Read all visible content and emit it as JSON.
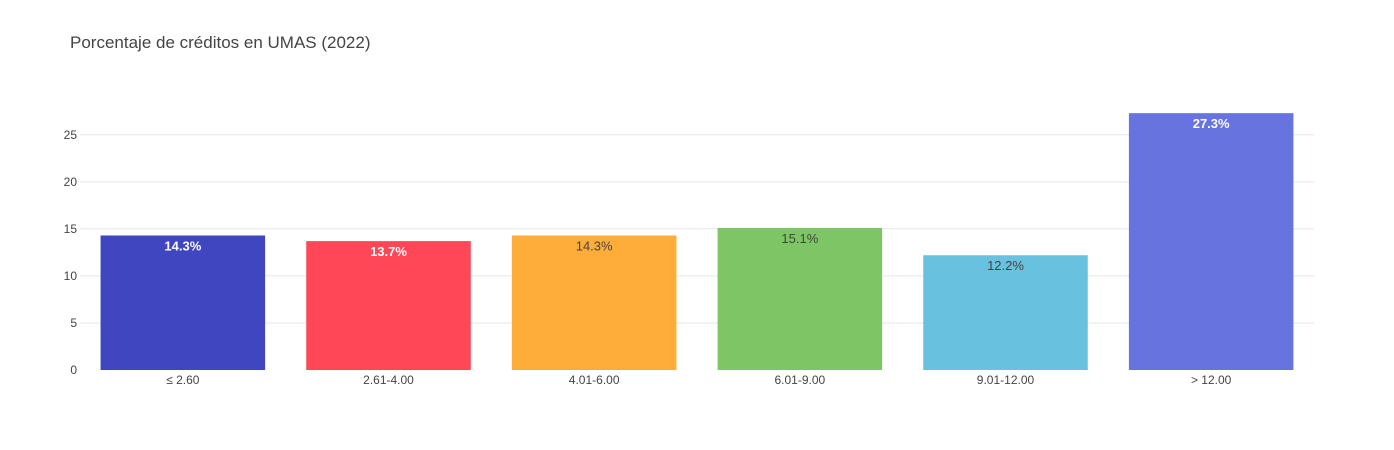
{
  "chart_data": {
    "type": "bar",
    "title": "Porcentaje de créditos en UMAS (2022)",
    "xlabel": "",
    "ylabel": "",
    "categories": [
      "≤ 2.60",
      "2.61-4.00",
      "4.01-6.00",
      "6.01-9.00",
      "9.01-12.00",
      "> 12.00"
    ],
    "values": [
      14.3,
      13.7,
      14.3,
      15.1,
      12.2,
      27.3
    ],
    "data_labels": [
      "14.3%",
      "13.7%",
      "14.3%",
      "15.1%",
      "12.2%",
      "27.3%"
    ],
    "colors": [
      "#4046c0",
      "#ff4757",
      "#ffad3a",
      "#7dc565",
      "#67c1df",
      "#6773df"
    ],
    "label_colors": [
      "#ffffff",
      "#ffffff",
      "#444444",
      "#444444",
      "#444444",
      "#ffffff"
    ],
    "ylim": [
      0,
      28.7
    ],
    "yticks": [
      0,
      5,
      10,
      15,
      20,
      25
    ],
    "grid": true,
    "legend": "none"
  }
}
